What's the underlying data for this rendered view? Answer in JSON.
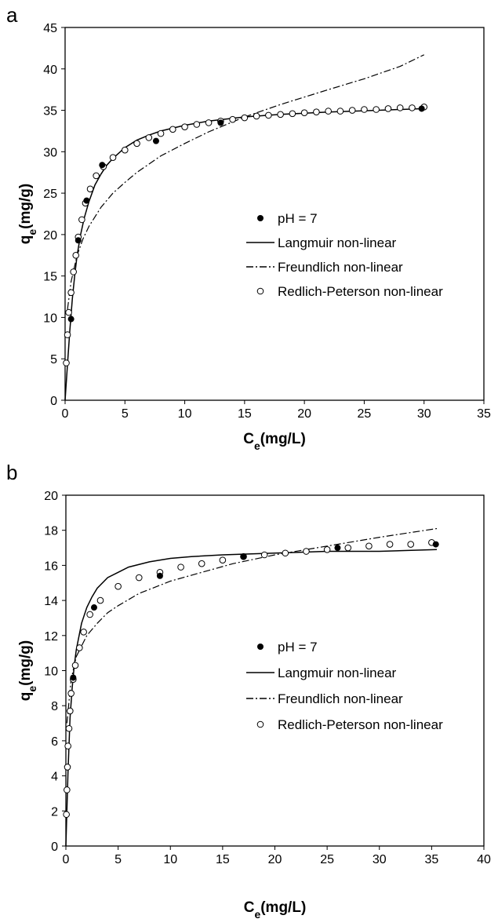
{
  "chart_data": [
    {
      "type": "scatter",
      "panel_label": "a",
      "xlabel": "Ce(mg/L)",
      "ylabel": "qe(mg/g)",
      "xlim": [
        0,
        35
      ],
      "ylim": [
        0,
        45
      ],
      "xticks": [
        0,
        5,
        10,
        15,
        20,
        25,
        30,
        35
      ],
      "yticks": [
        0,
        5,
        10,
        15,
        20,
        25,
        30,
        35,
        40,
        45
      ],
      "legend_placement": "center-right",
      "series": [
        {
          "name": "pH = 7",
          "kind": "filled-marker",
          "points": [
            [
              0.5,
              9.8
            ],
            [
              1.1,
              19.3
            ],
            [
              1.8,
              24.1
            ],
            [
              3.1,
              28.4
            ],
            [
              7.6,
              31.3
            ],
            [
              13.0,
              33.5
            ],
            [
              29.8,
              35.2
            ]
          ]
        },
        {
          "name": "Langmuir non-linear",
          "kind": "solid-line",
          "points": [
            [
              0,
              0
            ],
            [
              0.2,
              4.4
            ],
            [
              0.4,
              8.5
            ],
            [
              0.6,
              12.2
            ],
            [
              0.8,
              15.0
            ],
            [
              1.0,
              17.5
            ],
            [
              1.3,
              20.0
            ],
            [
              1.6,
              22.0
            ],
            [
              2.0,
              24.0
            ],
            [
              2.5,
              26.0
            ],
            [
              3.0,
              27.3
            ],
            [
              3.5,
              28.4
            ],
            [
              4.0,
              29.2
            ],
            [
              5.0,
              30.5
            ],
            [
              6.0,
              31.4
            ],
            [
              7.0,
              32.0
            ],
            [
              8.0,
              32.5
            ],
            [
              10.0,
              33.2
            ],
            [
              12.0,
              33.7
            ],
            [
              15.0,
              34.2
            ],
            [
              18.0,
              34.5
            ],
            [
              22.0,
              34.8
            ],
            [
              26.0,
              35.0
            ],
            [
              30.0,
              35.2
            ]
          ]
        },
        {
          "name": "Freundlich non-linear",
          "kind": "dash-dot-line",
          "points": [
            [
              0.2,
              11.0
            ],
            [
              0.5,
              14.3
            ],
            [
              1.0,
              17.5
            ],
            [
              1.5,
              19.5
            ],
            [
              2.0,
              21.0
            ],
            [
              3.0,
              23.3
            ],
            [
              4.0,
              25.0
            ],
            [
              5.0,
              26.3
            ],
            [
              6.0,
              27.5
            ],
            [
              8.0,
              29.5
            ],
            [
              10.0,
              31.0
            ],
            [
              12.0,
              32.4
            ],
            [
              15.0,
              34.2
            ],
            [
              18.0,
              35.7
            ],
            [
              20.0,
              36.6
            ],
            [
              22.0,
              37.5
            ],
            [
              25.0,
              38.8
            ],
            [
              28.0,
              40.3
            ],
            [
              30.0,
              41.7
            ]
          ]
        },
        {
          "name": "Redlich-Peterson non-linear",
          "kind": "open-marker",
          "points": [
            [
              0.1,
              4.5
            ],
            [
              0.2,
              7.9
            ],
            [
              0.3,
              10.6
            ],
            [
              0.5,
              13.0
            ],
            [
              0.7,
              15.5
            ],
            [
              0.9,
              17.5
            ],
            [
              1.1,
              19.7
            ],
            [
              1.4,
              21.8
            ],
            [
              1.7,
              23.8
            ],
            [
              2.1,
              25.5
            ],
            [
              2.6,
              27.1
            ],
            [
              3.2,
              28.2
            ],
            [
              4.0,
              29.3
            ],
            [
              5.0,
              30.2
            ],
            [
              6.0,
              31.0
            ],
            [
              7.0,
              31.7
            ],
            [
              8.0,
              32.2
            ],
            [
              9.0,
              32.7
            ],
            [
              10.0,
              33.0
            ],
            [
              11.0,
              33.3
            ],
            [
              12.0,
              33.5
            ],
            [
              13.0,
              33.7
            ],
            [
              14.0,
              33.9
            ],
            [
              15.0,
              34.1
            ],
            [
              16.0,
              34.3
            ],
            [
              17.0,
              34.4
            ],
            [
              18.0,
              34.5
            ],
            [
              19.0,
              34.6
            ],
            [
              20.0,
              34.7
            ],
            [
              21.0,
              34.8
            ],
            [
              22.0,
              34.9
            ],
            [
              23.0,
              34.9
            ],
            [
              24.0,
              35.0
            ],
            [
              25.0,
              35.1
            ],
            [
              26.0,
              35.1
            ],
            [
              27.0,
              35.2
            ],
            [
              28.0,
              35.3
            ],
            [
              29.0,
              35.3
            ],
            [
              30.0,
              35.4
            ]
          ]
        }
      ]
    },
    {
      "type": "scatter",
      "panel_label": "b",
      "xlabel": "Ce(mg/L)",
      "ylabel": "qe(mg/g)",
      "xlim": [
        0,
        40
      ],
      "ylim": [
        0,
        20
      ],
      "xticks": [
        0,
        5,
        10,
        15,
        20,
        25,
        30,
        35,
        40
      ],
      "yticks": [
        0,
        2,
        4,
        6,
        8,
        10,
        12,
        14,
        16,
        18,
        20
      ],
      "legend_placement": "center-right",
      "series": [
        {
          "name": "pH = 7",
          "kind": "filled-marker",
          "points": [
            [
              0.7,
              9.6
            ],
            [
              2.7,
              13.6
            ],
            [
              9.0,
              15.4
            ],
            [
              17.0,
              16.5
            ],
            [
              26.0,
              17.0
            ],
            [
              35.4,
              17.2
            ]
          ]
        },
        {
          "name": "Langmuir non-linear",
          "kind": "solid-line",
          "points": [
            [
              0,
              0
            ],
            [
              0.2,
              4.2
            ],
            [
              0.4,
              7.3
            ],
            [
              0.6,
              9.0
            ],
            [
              0.8,
              10.3
            ],
            [
              1.0,
              11.2
            ],
            [
              1.5,
              12.7
            ],
            [
              2.0,
              13.6
            ],
            [
              2.5,
              14.2
            ],
            [
              3.0,
              14.7
            ],
            [
              4.0,
              15.3
            ],
            [
              5.0,
              15.6
            ],
            [
              6.0,
              15.9
            ],
            [
              8.0,
              16.2
            ],
            [
              10.0,
              16.4
            ],
            [
              12.0,
              16.5
            ],
            [
              15.0,
              16.6
            ],
            [
              20.0,
              16.7
            ],
            [
              25.0,
              16.8
            ],
            [
              30.0,
              16.8
            ],
            [
              35.5,
              16.9
            ]
          ]
        },
        {
          "name": "Freundlich non-linear",
          "kind": "dash-dot-line",
          "points": [
            [
              0.1,
              7.0
            ],
            [
              0.5,
              9.5
            ],
            [
              1.0,
              10.8
            ],
            [
              2.0,
              12.0
            ],
            [
              3.0,
              12.7
            ],
            [
              4.0,
              13.3
            ],
            [
              5.0,
              13.7
            ],
            [
              7.0,
              14.4
            ],
            [
              10.0,
              15.1
            ],
            [
              13.0,
              15.6
            ],
            [
              16.0,
              16.1
            ],
            [
              20.0,
              16.6
            ],
            [
              25.0,
              17.1
            ],
            [
              30.0,
              17.6
            ],
            [
              35.5,
              18.1
            ]
          ]
        },
        {
          "name": "Redlich-Peterson non-linear",
          "kind": "open-marker",
          "points": [
            [
              0.05,
              1.8
            ],
            [
              0.1,
              3.2
            ],
            [
              0.15,
              4.5
            ],
            [
              0.2,
              5.7
            ],
            [
              0.3,
              6.7
            ],
            [
              0.4,
              7.7
            ],
            [
              0.5,
              8.7
            ],
            [
              0.7,
              9.5
            ],
            [
              0.9,
              10.3
            ],
            [
              1.3,
              11.3
            ],
            [
              1.7,
              12.2
            ],
            [
              2.3,
              13.2
            ],
            [
              3.3,
              14.0
            ],
            [
              5.0,
              14.8
            ],
            [
              7.0,
              15.3
            ],
            [
              9.0,
              15.6
            ],
            [
              11.0,
              15.9
            ],
            [
              13.0,
              16.1
            ],
            [
              15.0,
              16.3
            ],
            [
              17.0,
              16.5
            ],
            [
              19.0,
              16.6
            ],
            [
              21.0,
              16.7
            ],
            [
              23.0,
              16.8
            ],
            [
              25.0,
              16.9
            ],
            [
              27.0,
              17.0
            ],
            [
              29.0,
              17.1
            ],
            [
              31.0,
              17.2
            ],
            [
              33.0,
              17.2
            ],
            [
              35.0,
              17.3
            ]
          ]
        }
      ]
    }
  ]
}
